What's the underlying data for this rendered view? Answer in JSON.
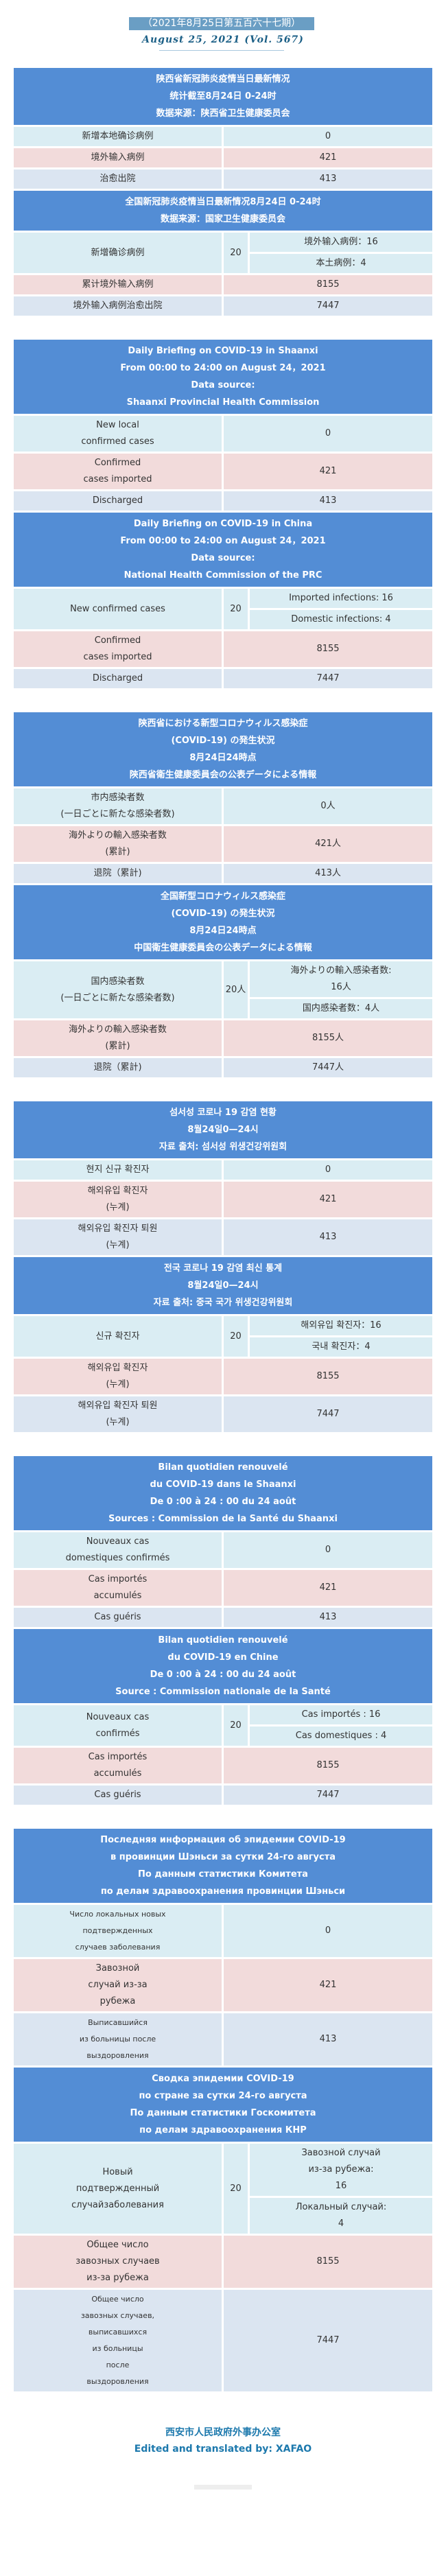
{
  "header": {
    "issue": "（2021年8月25日第五百六十七期）",
    "volume": "August 25, 2021 (Vol. 567)"
  },
  "colors": {
    "header_bg": "#538dd5",
    "row_new": "#daedf3",
    "row_imported": "#f2dbdb",
    "row_discharged": "#dbe5f1",
    "footer": "#1d79ad"
  },
  "sections": [
    {
      "lang": "zh",
      "provincial": {
        "header_lines": [
          "陕西省新冠肺炎疫情当日最新情况",
          "统计截至8月24日 0-24时",
          "数据来源：陕西省卫生健康委员会"
        ],
        "rows": [
          {
            "label_lines": [
              "新增本地确诊病例"
            ],
            "value": "0"
          },
          {
            "label_lines": [
              "境外输入病例"
            ],
            "value": "421"
          },
          {
            "label_lines": [
              "治愈出院"
            ],
            "value": "413"
          }
        ]
      },
      "national": {
        "header_lines": [
          "全国新冠肺炎疫情当日最新情况8月24日 0-24时",
          "数据来源：国家卫生健康委员会"
        ],
        "new_cases": {
          "label_lines": [
            "新增确诊病例"
          ],
          "total": "20",
          "sub": [
            [
              "境外输入病例：16"
            ],
            [
              "本土病例：4"
            ]
          ]
        },
        "rows": [
          {
            "label_lines": [
              "累计境外输入病例"
            ],
            "value": "8155"
          },
          {
            "label_lines": [
              "境外输入病例治愈出院"
            ],
            "value": "7447"
          }
        ]
      }
    },
    {
      "lang": "en",
      "provincial": {
        "header_lines": [
          "Daily Briefing on COVID-19 in Shaanxi",
          "From 00:00 to 24:00 on August 24，2021",
          "Data source:",
          "Shaanxi Provincial Health Commission"
        ],
        "rows": [
          {
            "label_lines": [
              "New local",
              "confirmed cases"
            ],
            "value": "0"
          },
          {
            "label_lines": [
              "Confirmed",
              "cases imported"
            ],
            "value": "421"
          },
          {
            "label_lines": [
              "Discharged"
            ],
            "value": "413"
          }
        ]
      },
      "national": {
        "header_lines": [
          "Daily Briefing on COVID-19 in China",
          "From 00:00 to 24:00 on  August 24，2021",
          "Data source:",
          "National Health Commission of the PRC"
        ],
        "new_cases": {
          "label_lines": [
            "New confirmed cases"
          ],
          "total": "20",
          "sub": [
            [
              "Imported infections: 16"
            ],
            [
              "Domestic infections: 4"
            ]
          ]
        },
        "rows": [
          {
            "label_lines": [
              "Confirmed",
              "cases imported"
            ],
            "value": "8155"
          },
          {
            "label_lines": [
              "Discharged"
            ],
            "value": "7447"
          }
        ]
      }
    },
    {
      "lang": "ja",
      "provincial": {
        "header_lines": [
          "陝西省における新型コロナウィルス感染症",
          "(COVID-19) の発生状況",
          "8月24日24時点",
          "陝西省衛生健康委員会の公表データによる情報"
        ],
        "rows": [
          {
            "label_lines": [
              "市内感染者数",
              "(一日ごとに新たな感染者数)"
            ],
            "value": "0人"
          },
          {
            "label_lines": [
              "海外よりの輸入感染者数",
              "(累計)"
            ],
            "value": "421人"
          },
          {
            "label_lines": [
              "退院（累計)"
            ],
            "value": "413人"
          }
        ]
      },
      "national": {
        "header_lines": [
          "全国新型コロナウィルス感染症",
          "(COVID-19) の発生状況",
          "8月24日24時点",
          "中国衛生健康委員会の公表データによる情報"
        ],
        "new_cases": {
          "label_lines": [
            "国内感染者数",
            "(一日ごとに新たな感染者数)"
          ],
          "total": "20人",
          "sub": [
            [
              "海外よりの輸入感染者数:",
              "16人"
            ],
            [
              "国内感染者数：4人"
            ]
          ]
        },
        "rows": [
          {
            "label_lines": [
              "海外よりの輸入感染者数",
              "(累計)"
            ],
            "value": "8155人"
          },
          {
            "label_lines": [
              "退院（累計)"
            ],
            "value": "7447人"
          }
        ]
      }
    },
    {
      "lang": "ko",
      "provincial": {
        "header_lines": [
          "섬서성 코로나 19 감염 현황",
          "8월24일0—24시",
          "자료 출처: 섬서성 위생건강위원회"
        ],
        "rows": [
          {
            "label_lines": [
              "현지 신규 확진자"
            ],
            "value": "0"
          },
          {
            "label_lines": [
              "해외유입 확진자",
              "(누계)"
            ],
            "value": "421"
          },
          {
            "label_lines": [
              "해외유입 확진자 퇴원",
              "(누계)"
            ],
            "value": "413"
          }
        ]
      },
      "national": {
        "header_lines": [
          "전국 코로나 19 감염 최신 통계",
          "8월24일0—24시",
          "자료 출처: 중국 국가 위생건강위원회"
        ],
        "new_cases": {
          "label_lines": [
            "신규 확진자"
          ],
          "total": "20",
          "sub": [
            [
              "해외유입 확진자：16"
            ],
            [
              "국내 확진자：4"
            ]
          ]
        },
        "rows": [
          {
            "label_lines": [
              "해외유입 확진자",
              "(누계)"
            ],
            "value": "8155"
          },
          {
            "label_lines": [
              "해외유입 확진자 퇴원",
              "(누계)"
            ],
            "value": "7447"
          }
        ]
      }
    },
    {
      "lang": "fr",
      "provincial": {
        "header_lines": [
          "Bilan quotidien renouvelé",
          "du COVID-19 dans le Shaanxi",
          "De 0 :00 à 24 : 00 du 24 août",
          "Sources : Commission de la Santé du Shaanxi"
        ],
        "rows": [
          {
            "label_lines": [
              "Nouveaux cas",
              "domestiques confirmés"
            ],
            "value": "0"
          },
          {
            "label_lines": [
              "Cas importés",
              "accumulés"
            ],
            "value": "421"
          },
          {
            "label_lines": [
              "Cas guéris"
            ],
            "value": "413"
          }
        ]
      },
      "national": {
        "header_lines": [
          "Bilan quotidien renouvelé",
          "du COVID-19 en Chine",
          "De 0 :00 à 24 : 00 du 24 août",
          "Source : Commission nationale de la Santé"
        ],
        "new_cases": {
          "label_lines": [
            "Nouveaux cas",
            "confirmés"
          ],
          "total": "20",
          "sub": [
            [
              "Cas importés : 16"
            ],
            [
              "Cas domestiques : 4"
            ]
          ]
        },
        "rows": [
          {
            "label_lines": [
              "Cas importés",
              "accumulés"
            ],
            "value": "8155"
          },
          {
            "label_lines": [
              "Cas guéris"
            ],
            "value": "7447"
          }
        ]
      }
    },
    {
      "lang": "ru",
      "provincial": {
        "header_lines": [
          "Последняя информация об эпидемии COVID-19",
          "в провинции Шэньси за сутки 24-го августа",
          "По данным статистики Комитета",
          "по делам здравоохранения провинции Шэньси"
        ],
        "rows": [
          {
            "label_lines": [
              "Число локальных новых",
              "подтвержденных",
              "случаев заболевания"
            ],
            "value": "0",
            "small": true
          },
          {
            "label_lines": [
              "Завозной",
              "случай из-за",
              "рубежа"
            ],
            "value": "421"
          },
          {
            "label_lines": [
              "Выписавшийся",
              "из больницы после",
              "выздоровления"
            ],
            "value": "413",
            "small": true
          }
        ]
      },
      "national": {
        "header_lines": [
          "Сводка эпидемии COVID-19",
          "по стране за сутки 24-го августа",
          "По данным статистики Госкомитета",
          "по делам здравоохранения КНР"
        ],
        "new_cases": {
          "label_lines": [
            "Новый",
            "подтвержденный",
            "случайзаболевания"
          ],
          "total": "20",
          "sub": [
            [
              "Завозной случай",
              "из-за рубежа:",
              "16"
            ],
            [
              "Локальный случай:",
              "4"
            ]
          ]
        },
        "rows": [
          {
            "label_lines": [
              "Общее число",
              "завозных случаев",
              "из-за рубежа"
            ],
            "value": "8155"
          },
          {
            "label_lines": [
              "Общее число",
              "завозных случаев,",
              "выписавшихся",
              "из больницы",
              "после",
              "выздоровления"
            ],
            "value": "7447",
            "small": true
          }
        ]
      }
    }
  ],
  "footer": {
    "org": "西安市人民政府外事办公室",
    "credit": "Edited and translated by: XAFAO"
  }
}
